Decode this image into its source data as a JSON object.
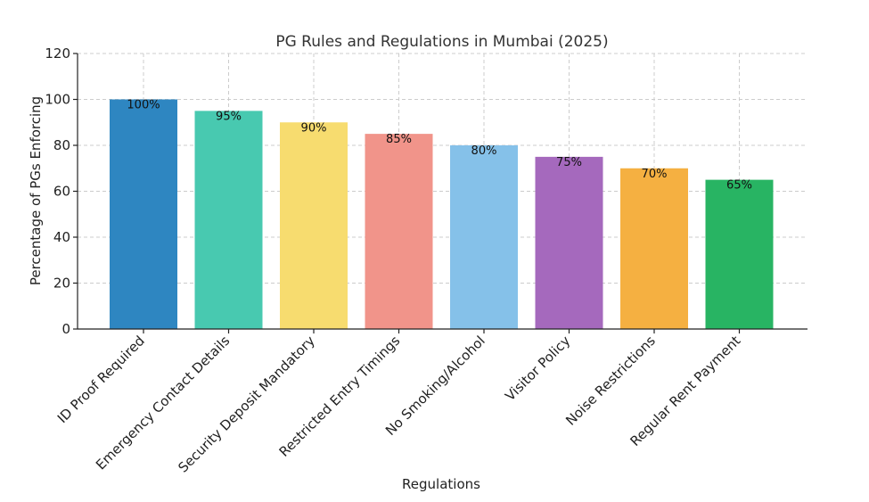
{
  "chart_data": {
    "type": "bar",
    "title": "PG Rules and Regulations in Mumbai (2025)",
    "xlabel": "Regulations",
    "ylabel": "Percentage of PGs Enforcing",
    "ylim": [
      0,
      120
    ],
    "yticks": [
      0,
      20,
      40,
      60,
      80,
      100,
      120
    ],
    "grid": true,
    "categories": [
      "ID Proof Required",
      "Emergency Contact Details",
      "Security Deposit Mandatory",
      "Restricted Entry Timings",
      "No Smoking/Alcohol",
      "Visitor Policy",
      "Noise Restrictions",
      "Regular Rent Payment"
    ],
    "values": [
      100,
      95,
      90,
      85,
      80,
      75,
      70,
      65
    ],
    "data_labels": [
      "100%",
      "95%",
      "90%",
      "85%",
      "80%",
      "75%",
      "70%",
      "65%"
    ],
    "colors": [
      "#2e86c1",
      "#48c9b0",
      "#f7dc6f",
      "#f1948a",
      "#85c1e9",
      "#a569bd",
      "#f5b041",
      "#28b463"
    ]
  }
}
